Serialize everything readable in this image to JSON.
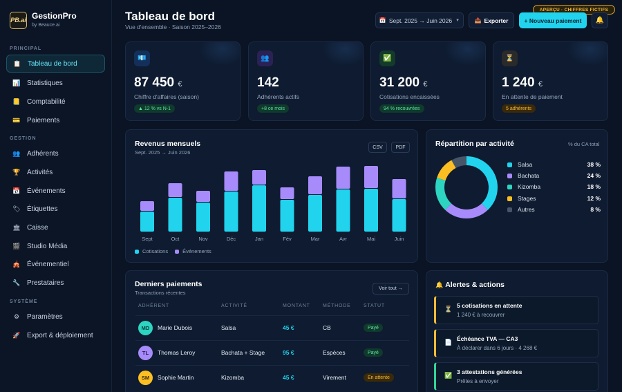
{
  "brand": {
    "logo": "PB.ai",
    "name": "GestionPro",
    "sub": "by Beauce.ai"
  },
  "sidebar": {
    "sections": [
      "PRINCIPAL",
      "GESTION",
      "SYSTÈME"
    ],
    "items": [
      {
        "label": "Tableau de bord",
        "icon": "clipboard-icon",
        "active": true
      },
      {
        "label": "Statistiques",
        "icon": "bar-chart-icon"
      },
      {
        "label": "Comptabilité",
        "icon": "ledger-icon"
      },
      {
        "label": "Paiements",
        "icon": "credit-card-icon"
      },
      {
        "label": "Adhérents",
        "icon": "people-icon"
      },
      {
        "label": "Activités",
        "icon": "trophy-icon"
      },
      {
        "label": "Événements",
        "icon": "calendar-icon"
      },
      {
        "label": "Étiquettes",
        "icon": "tag-icon"
      },
      {
        "label": "Caisse",
        "icon": "bank-icon"
      },
      {
        "label": "Studio Média",
        "icon": "film-icon"
      },
      {
        "label": "Événementiel",
        "icon": "venue-icon"
      },
      {
        "label": "Prestataires",
        "icon": "wrench-icon"
      },
      {
        "label": "Paramètres",
        "icon": "gear-icon"
      },
      {
        "label": "Export & déploiement",
        "icon": "rocket-icon"
      }
    ]
  },
  "header": {
    "title": "Tableau de bord",
    "subtitle": "Vue d'ensemble · Saison 2025–2026",
    "date_range": "Sept. 2025 → Juin 2026",
    "export": "Exporter",
    "new_payment": "+ Nouveau paiement",
    "preview_badge": "APERÇU · CHIFFRES FICTIFS"
  },
  "stats": [
    {
      "value": "87 450",
      "unit": "€",
      "label": "Chiffre d'affaires (saison)",
      "badge": "▲ 12 % vs N-1",
      "icon": "money-icon"
    },
    {
      "value": "142",
      "unit": "",
      "label": "Adhérents actifs",
      "badge": "+8 ce mois",
      "icon": "people-icon"
    },
    {
      "value": "31 200",
      "unit": "€",
      "label": "Cotisations encaissées",
      "badge": "94 % recouvrées",
      "icon": "check-icon"
    },
    {
      "value": "1 240",
      "unit": "€",
      "label": "En attente de paiement",
      "badge": "5 adhérents",
      "icon": "hourglass-icon"
    }
  ],
  "revenue": {
    "title": "Revenus mensuels",
    "subtitle": "Sept. 2025 → Juin 2026",
    "csv": "CSV",
    "pdf": "PDF",
    "legend": [
      "Cotisations",
      "Événements"
    ]
  },
  "chart_data": {
    "type": "bar",
    "stacked": true,
    "categories": [
      "Sept",
      "Oct",
      "Nov",
      "Déc",
      "Jan",
      "Fév",
      "Mar",
      "Avr",
      "Mai",
      "Juin"
    ],
    "series": [
      {
        "name": "Cotisations",
        "values": [
          29,
          49,
          42,
          58,
          67,
          46,
          53,
          61,
          62,
          47
        ],
        "color": "#22d3ee"
      },
      {
        "name": "Événements",
        "values": [
          14,
          20,
          16,
          28,
          21,
          17,
          26,
          32,
          32,
          28
        ],
        "color": "#a78bfa"
      }
    ]
  },
  "repartition": {
    "title": "Répartition par activité",
    "note": "% du CA total",
    "slices": [
      {
        "label": "Salsa",
        "pct": "38 %",
        "value": 38,
        "color": "#22d3ee"
      },
      {
        "label": "Bachata",
        "pct": "24 %",
        "value": 24,
        "color": "#a78bfa"
      },
      {
        "label": "Kizomba",
        "pct": "18 %",
        "value": 18,
        "color": "#2dd4bf"
      },
      {
        "label": "Stages",
        "pct": "12 %",
        "value": 12,
        "color": "#fbbf24"
      },
      {
        "label": "Autres",
        "pct": "8 %",
        "value": 8,
        "color": "#475569"
      }
    ]
  },
  "payments": {
    "title": "Derniers paiements",
    "subtitle": "Transactions récentes",
    "see_all": "Voir tout →",
    "columns": [
      "ADHÉRENT",
      "ACTIVITÉ",
      "MONTANT",
      "MÉTHODE",
      "STATUT"
    ],
    "rows": [
      {
        "initials": "MD",
        "name": "Marie Dubois",
        "activity": "Salsa",
        "amount": "45 €",
        "method": "CB",
        "status": "Payé",
        "avatar": "#2dd4bf"
      },
      {
        "initials": "TL",
        "name": "Thomas Leroy",
        "activity": "Bachata + Stage",
        "amount": "95 €",
        "method": "Espèces",
        "status": "Payé",
        "avatar": "#a78bfa"
      },
      {
        "initials": "SM",
        "name": "Sophie Martin",
        "activity": "Kizomba",
        "amount": "45 €",
        "method": "Virement",
        "status": "En attente",
        "avatar": "#fbbf24"
      }
    ]
  },
  "alerts": {
    "title": "Alertes & actions",
    "items": [
      {
        "title": "5 cotisations en attente",
        "sub": "1 240 € à recouvrer",
        "icon": "hourglass-icon",
        "color": "#f5b93a"
      },
      {
        "title": "Échéance TVA — CA3",
        "sub": "À déclarer dans 6 jours · 4 268 €",
        "icon": "document-icon",
        "color": "#f5b93a"
      },
      {
        "title": "3 attestations générées",
        "sub": "Prêtes à envoyer",
        "icon": "check-icon",
        "color": "#34d399"
      }
    ]
  }
}
